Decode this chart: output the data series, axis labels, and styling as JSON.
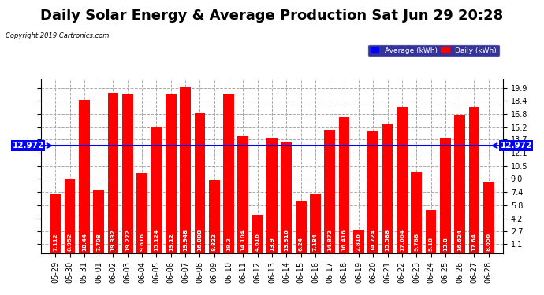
{
  "title": "Daily Solar Energy & Average Production Sat Jun 29 20:28",
  "copyright": "Copyright 2019 Cartronics.com",
  "average_label": "Average (kWh)",
  "daily_label": "Daily (kWh)",
  "average_value": 12.972,
  "categories": [
    "05-29",
    "05-30",
    "05-31",
    "06-01",
    "06-02",
    "06-03",
    "06-04",
    "06-05",
    "06-06",
    "06-07",
    "06-08",
    "06-09",
    "06-10",
    "06-11",
    "06-12",
    "06-13",
    "06-14",
    "06-15",
    "06-16",
    "06-17",
    "06-18",
    "06-19",
    "06-20",
    "06-21",
    "06-22",
    "06-23",
    "06-24",
    "06-25",
    "06-26",
    "06-27",
    "06-28"
  ],
  "values": [
    7.112,
    8.952,
    18.44,
    7.708,
    19.332,
    19.272,
    9.616,
    15.124,
    19.12,
    19.948,
    16.888,
    8.822,
    19.2,
    14.104,
    4.616,
    13.9,
    13.316,
    6.24,
    7.184,
    14.872,
    16.416,
    2.816,
    14.724,
    15.588,
    17.604,
    9.788,
    5.18,
    13.8,
    16.624,
    17.64,
    8.656
  ],
  "bar_color": "#ff0000",
  "avg_line_color": "#0000ff",
  "background_color": "#ffffff",
  "plot_bg_color": "#ffffff",
  "ylim": [
    0,
    21
  ],
  "yticks": [
    1.1,
    2.7,
    4.2,
    5.8,
    7.4,
    9.0,
    10.5,
    12.1,
    13.7,
    15.2,
    16.8,
    18.4,
    19.9
  ],
  "title_fontsize": 13,
  "tick_fontsize": 7,
  "label_fontsize": 6.5,
  "avg_fontsize": 7.5,
  "legend_avg_color": "#0000ff",
  "legend_daily_color": "#ff0000",
  "legend_bg_color": "#000080",
  "grid_color": "#aaaaaa"
}
